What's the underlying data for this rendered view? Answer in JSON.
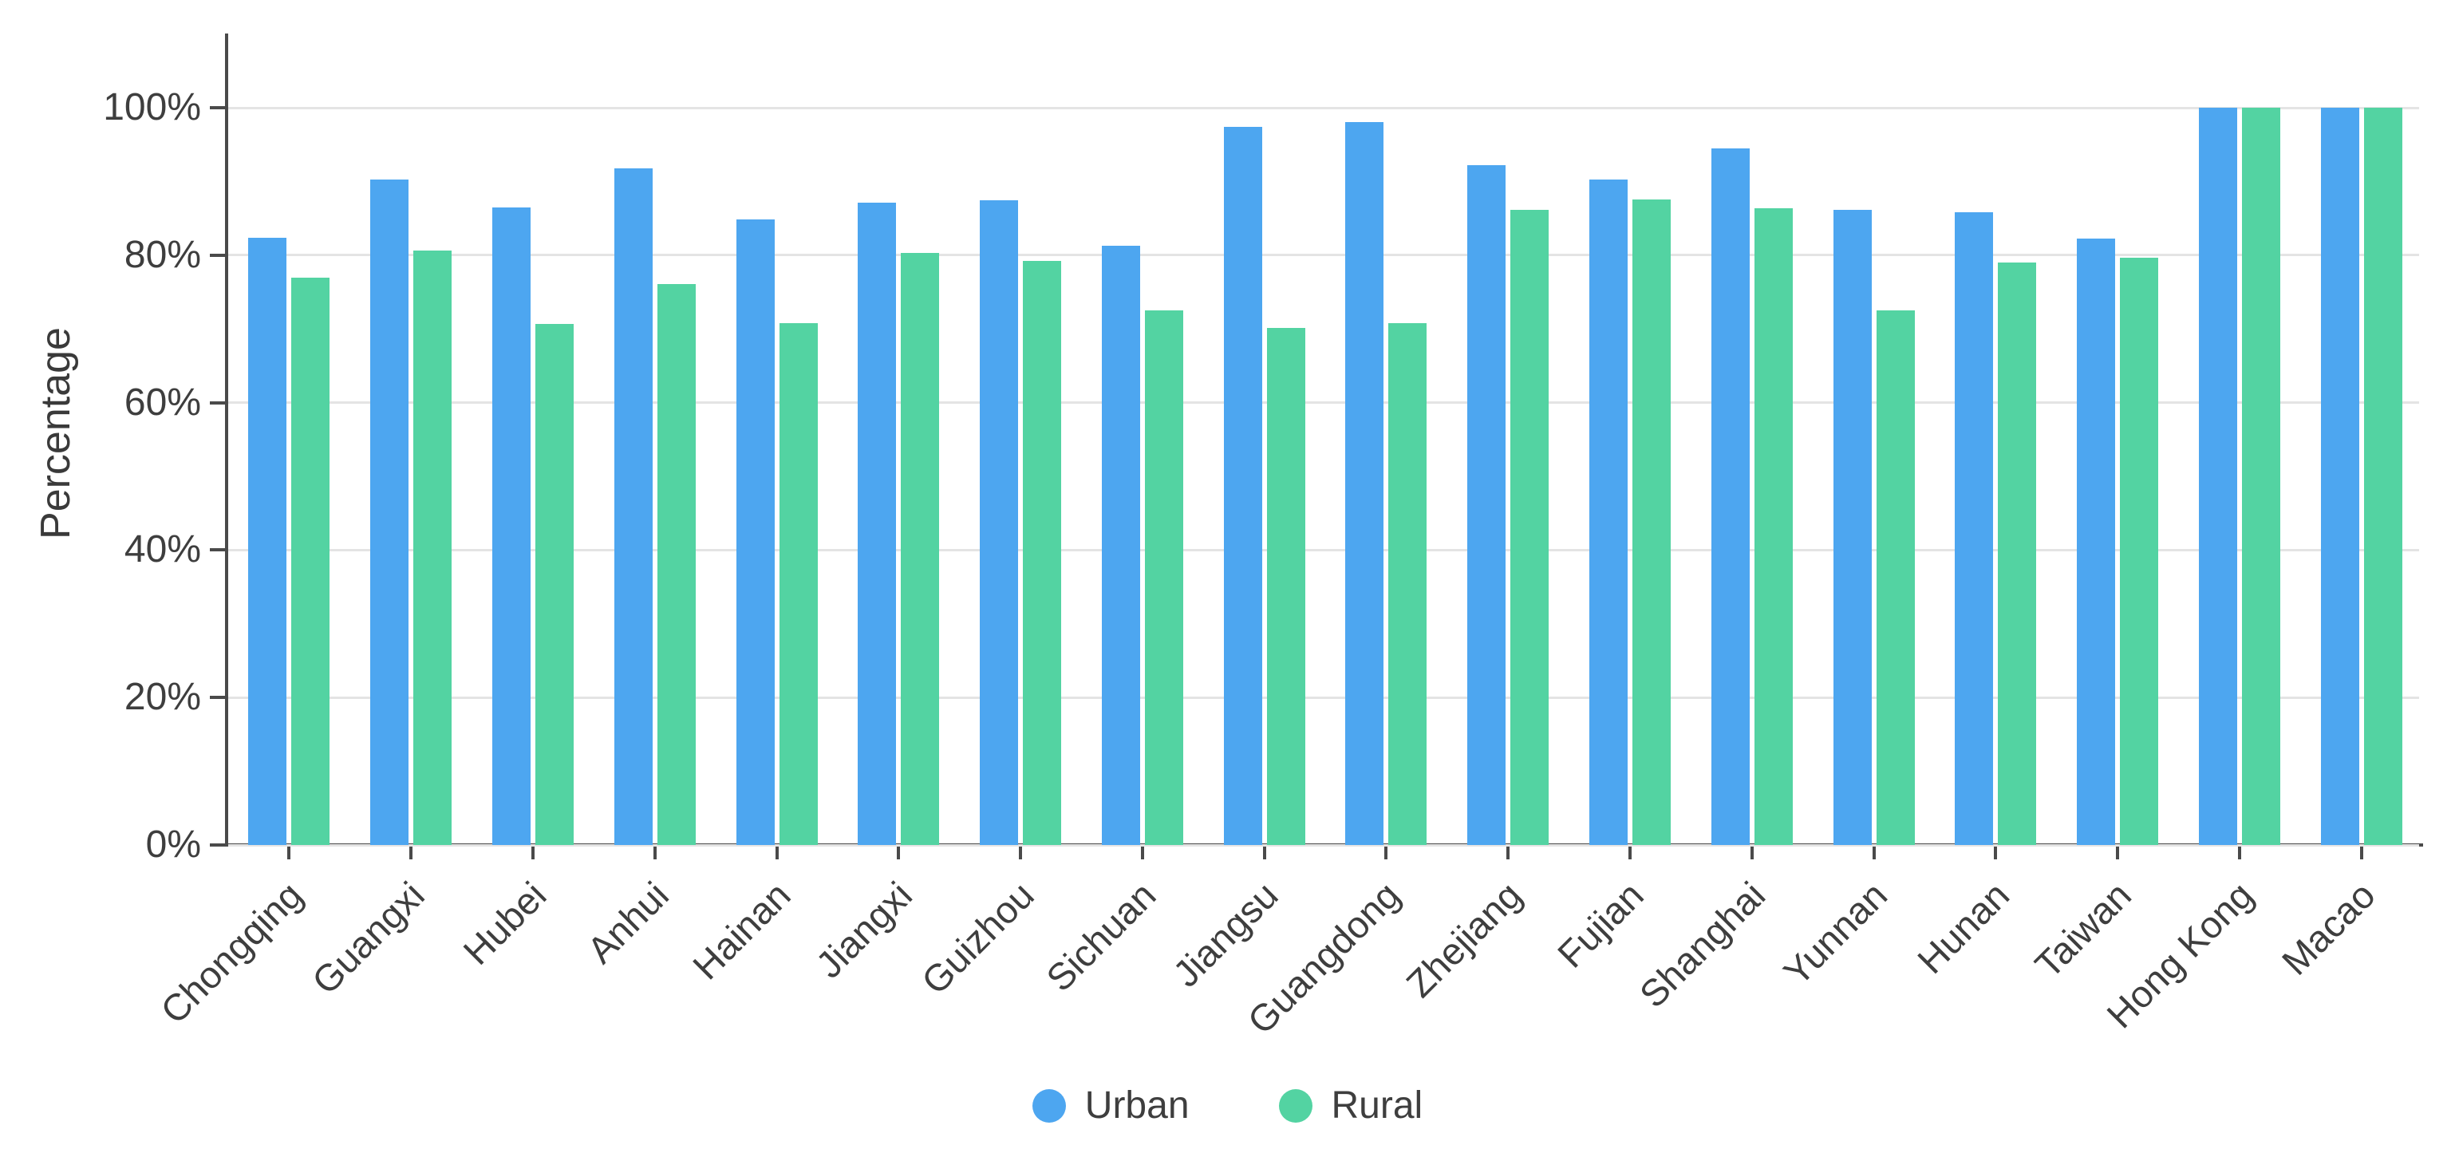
{
  "chart_data": {
    "type": "bar",
    "title": "",
    "xlabel": "",
    "ylabel": "Percentage",
    "categories": [
      "Chongqing",
      "Guangxi",
      "Hubei",
      "Anhui",
      "Hainan",
      "Jiangxi",
      "Guizhou",
      "Sichuan",
      "Jiangsu",
      "Guangdong",
      "Zhejiang",
      "Fujian",
      "Shanghai",
      "Yunnan",
      "Hunan",
      "Taiwan",
      "Hong Kong",
      "Macao"
    ],
    "series": [
      {
        "name": "Urban",
        "color": "#4da6f0",
        "values": [
          82.4,
          90.3,
          86.5,
          91.8,
          84.8,
          87.1,
          87.5,
          81.3,
          97.4,
          98.1,
          92.2,
          90.3,
          94.5,
          86.2,
          85.8,
          82.3,
          100,
          100
        ]
      },
      {
        "name": "Rural",
        "color": "#53d3a2",
        "values": [
          77.0,
          80.6,
          70.7,
          76.1,
          70.8,
          80.3,
          79.2,
          72.5,
          70.1,
          70.8,
          86.1,
          87.6,
          86.4,
          72.5,
          79.0,
          79.7,
          100,
          100
        ]
      }
    ],
    "y_ticks": [
      "0%",
      "20%",
      "40%",
      "60%",
      "80%",
      "100%"
    ],
    "ylim": [
      0,
      110
    ],
    "grid": true,
    "legend_position": "bottom-center"
  },
  "colors": {
    "urban": "#4da6f0",
    "rural": "#53d3a2",
    "axis_line": "#4a4a4a",
    "gridline": "#e4e4e4",
    "text": "#3e3e3e",
    "background": "#ffffff"
  }
}
